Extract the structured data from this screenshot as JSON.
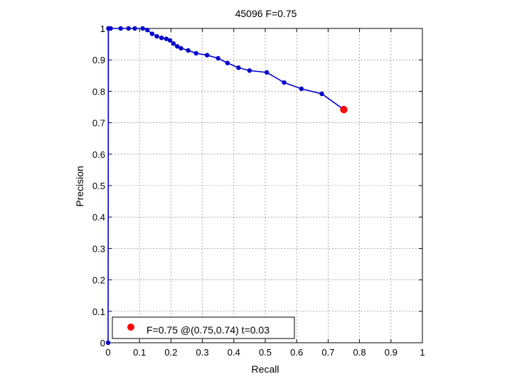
{
  "chart_data": {
    "type": "line",
    "title": "45096 F=0.75",
    "xlabel": "Recall",
    "ylabel": "Precision",
    "xlim": [
      0,
      1
    ],
    "ylim": [
      0,
      1
    ],
    "xticks": [
      "0",
      "0.1",
      "0.2",
      "0.3",
      "0.4",
      "0.5",
      "0.6",
      "0.7",
      "0.8",
      "0.9",
      "1"
    ],
    "yticks": [
      "0",
      "0.1",
      "0.2",
      "0.3",
      "0.4",
      "0.5",
      "0.6",
      "0.7",
      "0.8",
      "0.9",
      "1"
    ],
    "grid": true,
    "legend_position": "bottom-left",
    "series": [
      {
        "color": "#0000cc",
        "marker": "dot",
        "x": [
          0,
          0.001,
          0.008,
          0.04,
          0.065,
          0.085,
          0.11,
          0.125,
          0.14,
          0.155,
          0.17,
          0.185,
          0.197,
          0.208,
          0.22,
          0.232,
          0.255,
          0.28,
          0.315,
          0.35,
          0.38,
          0.415,
          0.45,
          0.505,
          0.56,
          0.615,
          0.68
        ],
        "y": [
          0,
          1,
          1,
          1,
          1,
          1,
          1,
          0.995,
          0.983,
          0.975,
          0.97,
          0.967,
          0.962,
          0.952,
          0.943,
          0.937,
          0.93,
          0.921,
          0.915,
          0.905,
          0.89,
          0.875,
          0.866,
          0.86,
          0.828,
          0.808,
          0.792
        ]
      }
    ],
    "best_point": {
      "x": 0.75,
      "y": 0.742,
      "color": "#ff0000",
      "label": "F=0.75 @(0.75,0.74) t=0.03"
    },
    "colors": {
      "line": "#0000cc",
      "best": "#ff0000",
      "axes": "#000000",
      "background": "#ffffff"
    }
  }
}
